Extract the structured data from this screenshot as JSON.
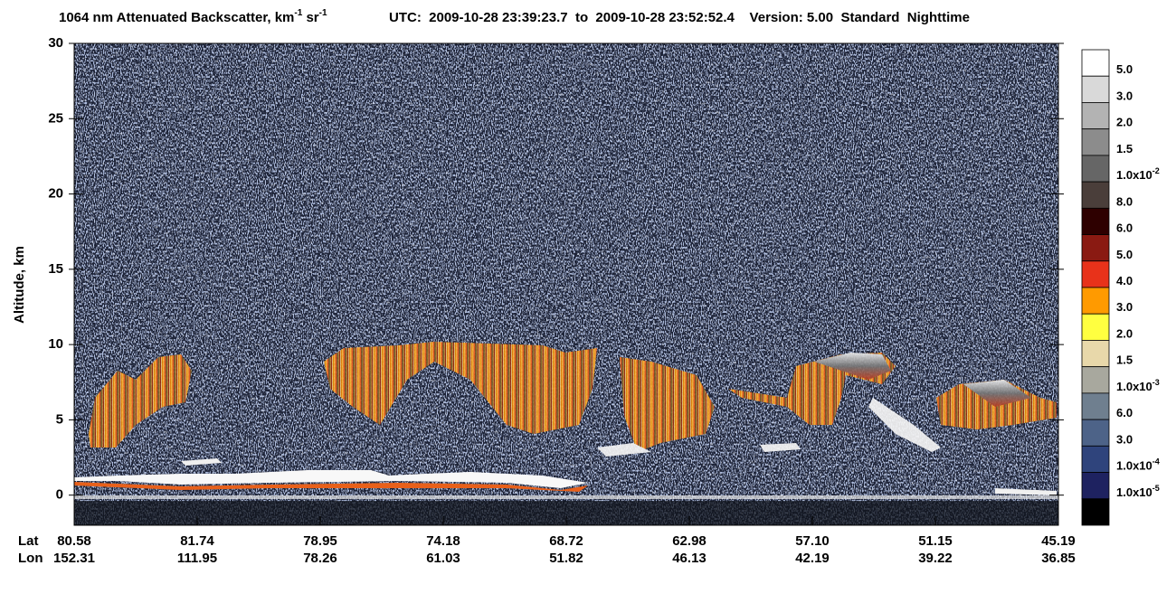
{
  "chart_data": {
    "type": "profile",
    "title": [
      "1064 nm Attenuated Backscatter, km",
      "-1",
      " sr",
      "-1"
    ],
    "subtitle": "UTC:  2009-10-28 23:39:23.7  to  2009-10-28 23:52:52.4    Version: 5.00  Standard  Nighttime",
    "ylabel": "Altitude, km",
    "ylim": [
      -2,
      30
    ],
    "yticks": [
      0,
      5,
      10,
      15,
      20,
      25,
      30
    ],
    "x_row_labels": [
      "Lat",
      "Lon"
    ],
    "lat": [
      "80.58",
      "81.74",
      "78.95",
      "74.18",
      "68.72",
      "62.98",
      "57.10",
      "51.15",
      "45.19"
    ],
    "lon": [
      "152.31",
      "111.95",
      "78.26",
      "61.03",
      "51.82",
      "46.13",
      "42.19",
      "39.22",
      "36.85"
    ],
    "colorbar": {
      "colors": [
        "#ffffff",
        "#d9d9d9",
        "#b3b3b3",
        "#8c8c8c",
        "#666666",
        "#4a3e3a",
        "#2e0000",
        "#8a1a12",
        "#e8321a",
        "#ff9a00",
        "#ffff40",
        "#e8d8aa",
        "#a8a89e",
        "#6f7f8f",
        "#4d6388",
        "#2f447c",
        "#1e2260",
        "#000000"
      ],
      "labels": [
        {
          "text": "5.0"
        },
        {
          "text": "3.0"
        },
        {
          "text": "2.0"
        },
        {
          "text": "1.5"
        },
        {
          "text": "1.0x10",
          "sup": "-2"
        },
        {
          "text": "8.0"
        },
        {
          "text": "6.0"
        },
        {
          "text": "5.0"
        },
        {
          "text": "4.0"
        },
        {
          "text": "3.0"
        },
        {
          "text": "2.0"
        },
        {
          "text": "1.5"
        },
        {
          "text": "1.0x10",
          "sup": "-3"
        },
        {
          "text": "6.0"
        },
        {
          "text": "3.0"
        },
        {
          "text": "1.0x10",
          "sup": "-4"
        },
        {
          "text": "1.0x10",
          "sup": "-5"
        }
      ]
    }
  }
}
